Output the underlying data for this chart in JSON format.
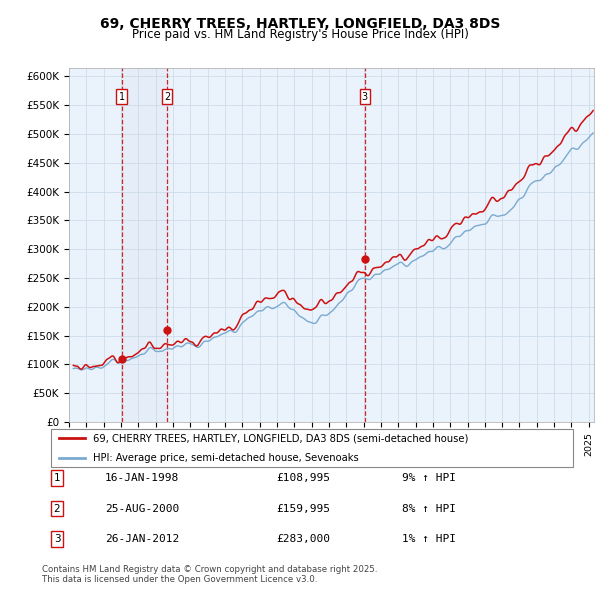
{
  "title_line1": "69, CHERRY TREES, HARTLEY, LONGFIELD, DA3 8DS",
  "title_line2": "Price paid vs. HM Land Registry's House Price Index (HPI)",
  "ylabel_ticks": [
    "£0",
    "£50K",
    "£100K",
    "£150K",
    "£200K",
    "£250K",
    "£300K",
    "£350K",
    "£400K",
    "£450K",
    "£500K",
    "£550K",
    "£600K"
  ],
  "ytick_values": [
    0,
    50000,
    100000,
    150000,
    200000,
    250000,
    300000,
    350000,
    400000,
    450000,
    500000,
    550000,
    600000
  ],
  "ylim": [
    0,
    615000
  ],
  "xlim_start": 1995.3,
  "xlim_end": 2025.3,
  "hpi_color": "#7aaad0",
  "price_color": "#cc1111",
  "sale_dates": [
    1998.04,
    2000.65,
    2012.07
  ],
  "sale_prices": [
    108995,
    159995,
    283000
  ],
  "sale_labels": [
    "1",
    "2",
    "3"
  ],
  "shade_color": "#dce8f5",
  "legend_line1": "69, CHERRY TREES, HARTLEY, LONGFIELD, DA3 8DS (semi-detached house)",
  "legend_line2": "HPI: Average price, semi-detached house, Sevenoaks",
  "table_data": [
    [
      "1",
      "16-JAN-1998",
      "£108,995",
      "9% ↑ HPI"
    ],
    [
      "2",
      "25-AUG-2000",
      "£159,995",
      "8% ↑ HPI"
    ],
    [
      "3",
      "26-JAN-2012",
      "£283,000",
      "1% ↑ HPI"
    ]
  ],
  "footnote": "Contains HM Land Registry data © Crown copyright and database right 2025.\nThis data is licensed under the Open Government Licence v3.0.",
  "background_color": "#ffffff",
  "chart_bg_color": "#eaf2fb",
  "grid_color": "#c8d8e8"
}
